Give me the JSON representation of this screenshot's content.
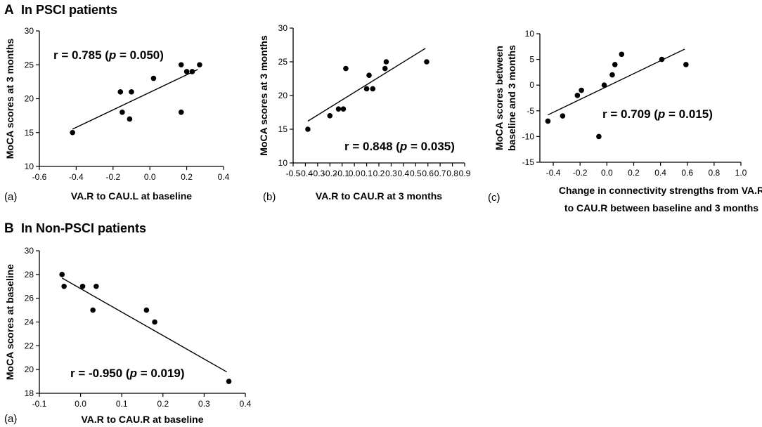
{
  "sections": [
    {
      "letter": "A",
      "title": "In PSCI patients"
    },
    {
      "letter": "B",
      "title": "In Non-PSCI patients"
    }
  ],
  "chart_data": [
    {
      "type": "scatter",
      "id": "A-a",
      "panel_label": "(a)",
      "xlabel": [
        "VA.R to CAU.L at baseline"
      ],
      "ylabel": [
        "MoCA scores at 3 months"
      ],
      "xlim": [
        -0.6,
        0.4
      ],
      "ylim": [
        10,
        30
      ],
      "xticks": [
        -0.6,
        -0.4,
        -0.2,
        0.0,
        0.2,
        0.4
      ],
      "yticks": [
        10,
        15,
        20,
        25,
        30
      ],
      "xtick_labels": [
        "-0.6",
        "-0.4",
        "-0.2",
        "0.0",
        "0.2",
        "0.4"
      ],
      "ytick_labels": [
        "10",
        "15",
        "20",
        "25",
        "30"
      ],
      "points": [
        [
          -0.42,
          15
        ],
        [
          -0.16,
          21
        ],
        [
          -0.15,
          18
        ],
        [
          -0.11,
          17
        ],
        [
          -0.1,
          21
        ],
        [
          0.02,
          23
        ],
        [
          0.17,
          25
        ],
        [
          0.17,
          18
        ],
        [
          0.2,
          24
        ],
        [
          0.23,
          24
        ],
        [
          0.27,
          25
        ]
      ],
      "fit": [
        [
          -0.42,
          15.5
        ],
        [
          0.26,
          24.3
        ]
      ],
      "annotation": {
        "r_prefix": "r = 0.785 (",
        "p_symbol": "p",
        "p_suffix": " = 0.050)"
      }
    },
    {
      "type": "scatter",
      "id": "A-b",
      "panel_label": "(b)",
      "xlabel": [
        "VA.R to CAU.R at 3 months"
      ],
      "ylabel": [
        "MoCA scores at 3 months"
      ],
      "xlim": [
        -0.5,
        0.9
      ],
      "ylim": [
        10,
        30
      ],
      "xticks": [
        -0.5,
        -0.4,
        -0.3,
        -0.2,
        -0.1,
        0.0,
        0.1,
        0.2,
        0.3,
        0.4,
        0.5,
        0.6,
        0.7,
        0.8,
        0.9
      ],
      "yticks": [
        10,
        15,
        20,
        25,
        30
      ],
      "xtick_labels": [
        "-0.5",
        "-0.4",
        "-0.3",
        "-0.2",
        "-0.1",
        "0.0",
        "0.1",
        "0.2",
        "0.3",
        "0.4",
        "0.5",
        "0.6",
        "0.7",
        "0.8",
        "0.9"
      ],
      "ytick_labels": [
        "10",
        "15",
        "20",
        "25",
        "30"
      ],
      "points": [
        [
          -0.38,
          15
        ],
        [
          -0.2,
          17
        ],
        [
          -0.13,
          18
        ],
        [
          -0.09,
          18
        ],
        [
          -0.07,
          24
        ],
        [
          0.1,
          21
        ],
        [
          0.12,
          23
        ],
        [
          0.15,
          21
        ],
        [
          0.25,
          24
        ],
        [
          0.26,
          25
        ],
        [
          0.59,
          25
        ]
      ],
      "fit": [
        [
          -0.38,
          16.2
        ],
        [
          0.58,
          27.0
        ]
      ],
      "annotation": {
        "r_prefix": "r = 0.848 (",
        "p_symbol": "p",
        "p_suffix": " = 0.035)"
      }
    },
    {
      "type": "scatter",
      "id": "A-c",
      "panel_label": "(c)",
      "xlabel": [
        "Change in connectivity strengths from VA.R",
        "to CAU.R between baseline and 3 months"
      ],
      "ylabel": [
        "MoCA scores between",
        "baseline and 3 months"
      ],
      "xlim": [
        -0.5,
        1.0
      ],
      "ylim": [
        -15,
        10
      ],
      "xticks": [
        -0.4,
        -0.2,
        0.0,
        0.2,
        0.4,
        0.6,
        0.8,
        1.0
      ],
      "yticks": [
        -15,
        -10,
        -5,
        0,
        5,
        10
      ],
      "xtick_labels": [
        "-0.4",
        "-0.2",
        "0.0",
        "0.2",
        "0.4",
        "0.6",
        "0.8",
        "1.0"
      ],
      "ytick_labels": [
        "-15",
        "-10",
        "-5",
        "0",
        "5",
        "10"
      ],
      "points": [
        [
          -0.44,
          -7
        ],
        [
          -0.33,
          -6
        ],
        [
          -0.22,
          -2
        ],
        [
          -0.19,
          -1
        ],
        [
          -0.06,
          -10
        ],
        [
          -0.02,
          0
        ],
        [
          0.04,
          2
        ],
        [
          0.06,
          4
        ],
        [
          0.11,
          6
        ],
        [
          0.41,
          5
        ],
        [
          0.59,
          4
        ]
      ],
      "fit": [
        [
          -0.44,
          -5.8
        ],
        [
          0.58,
          7.0
        ]
      ],
      "annotation": {
        "r_prefix": "r = 0.709 (",
        "p_symbol": "p",
        "p_suffix": " = 0.015)"
      }
    },
    {
      "type": "scatter",
      "id": "B-a",
      "panel_label": "(a)",
      "xlabel": [
        "VA.R to CAU.R at baseline"
      ],
      "ylabel": [
        "MoCA scores at baseline"
      ],
      "xlim": [
        -0.1,
        0.4
      ],
      "ylim": [
        18,
        30
      ],
      "xticks": [
        -0.1,
        0.0,
        0.1,
        0.2,
        0.3,
        0.4
      ],
      "yticks": [
        18,
        20,
        22,
        24,
        26,
        28,
        30
      ],
      "xtick_labels": [
        "-0.1",
        "0.0",
        "0.1",
        "0.2",
        "0.3",
        "0.4"
      ],
      "ytick_labels": [
        "18",
        "20",
        "22",
        "24",
        "26",
        "28",
        "30"
      ],
      "points": [
        [
          -0.045,
          28
        ],
        [
          -0.04,
          27
        ],
        [
          0.005,
          27
        ],
        [
          0.03,
          25
        ],
        [
          0.038,
          27
        ],
        [
          0.16,
          25
        ],
        [
          0.18,
          24
        ],
        [
          0.36,
          19
        ]
      ],
      "fit": [
        [
          -0.045,
          27.7
        ],
        [
          0.355,
          19.8
        ]
      ],
      "annotation": {
        "r_prefix": "r = -0.950 (",
        "p_symbol": "p",
        "p_suffix": " = 0.019)"
      }
    }
  ]
}
